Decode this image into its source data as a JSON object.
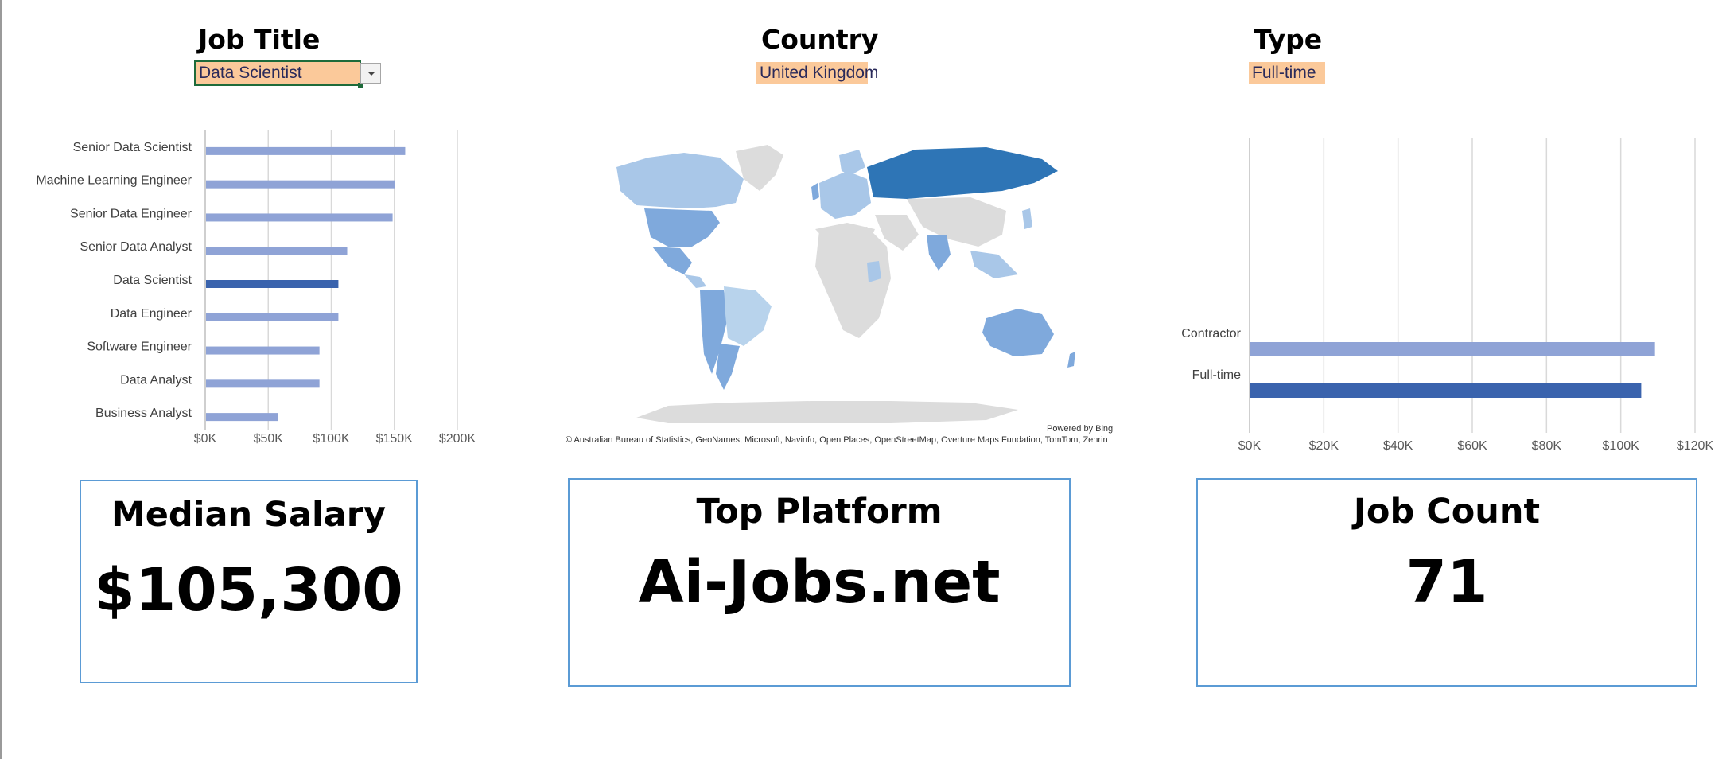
{
  "filters": {
    "job_title": {
      "label": "Job Title",
      "value": "Data Scientist"
    },
    "country": {
      "label": "Country",
      "value": "United Kingdom"
    },
    "type": {
      "label": "Type",
      "value": "Full-time"
    }
  },
  "colors": {
    "bar": "#8fa3d6",
    "bar_highlight": "#3a63ad",
    "map_land": "#dcdcdc",
    "map_light": "#a9c7e8",
    "map_mid": "#7fa9dc",
    "map_dark": "#2e75b6",
    "card_border": "#5b9bd5",
    "slicer_fill": "#fbc99a"
  },
  "map": {
    "powered_by": "Powered by Bing",
    "attribution": "© Australian Bureau of Statistics, GeoNames, Microsoft, Navinfo, Open Places, OpenStreetMap, Overture Maps Fundation, TomTom, Zenrin"
  },
  "kpis": {
    "median_salary": {
      "title": "Median Salary",
      "value": "$105,300"
    },
    "top_platform": {
      "title": "Top Platform",
      "value": "Ai-Jobs.net"
    },
    "job_count": {
      "title": "Job Count",
      "value": "71"
    }
  },
  "chart_data": [
    {
      "type": "bar",
      "orientation": "horizontal",
      "categories": [
        "Senior Data Scientist",
        "Machine Learning Engineer",
        "Senior Data Engineer",
        "Senior Data Analyst",
        "Data Scientist",
        "Data Engineer",
        "Software Engineer",
        "Data Analyst",
        "Business Analyst"
      ],
      "values": [
        158000,
        150000,
        148000,
        112000,
        105000,
        105000,
        90000,
        90000,
        57000
      ],
      "highlight": "Data Scientist",
      "xlim": [
        0,
        200000
      ],
      "ticks": [
        "$0K",
        "$50K",
        "$100K",
        "$150K",
        "$200K"
      ],
      "grid": true
    },
    {
      "type": "bar",
      "orientation": "horizontal",
      "categories": [
        "Contractor",
        "Full-time"
      ],
      "values": [
        109000,
        105300
      ],
      "highlight": "Full-time",
      "xlim": [
        0,
        120000
      ],
      "ticks": [
        "$0K",
        "$20K",
        "$40K",
        "$60K",
        "$80K",
        "$100K",
        "$120K"
      ],
      "grid": true
    }
  ]
}
